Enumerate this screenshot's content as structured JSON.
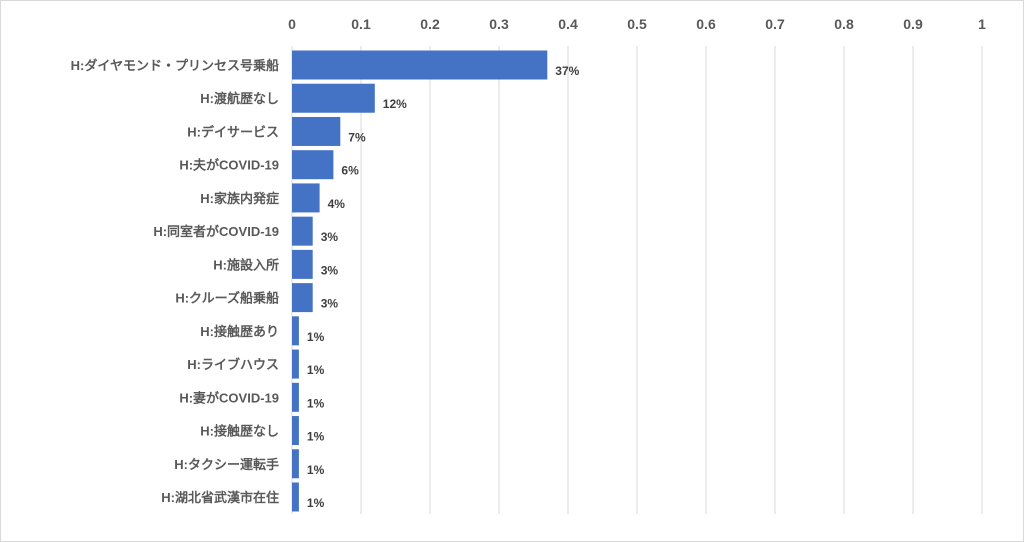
{
  "chart_data": {
    "type": "bar",
    "orientation": "horizontal",
    "title": "",
    "xlabel": "",
    "ylabel": "",
    "xlim": [
      0,
      1
    ],
    "x_ticks": [
      "0",
      "0.1",
      "0.2",
      "0.3",
      "0.4",
      "0.5",
      "0.6",
      "0.7",
      "0.8",
      "0.9",
      "1"
    ],
    "x_axis_position": "top",
    "grid": true,
    "legend": "none",
    "bar_color": "#4472C4",
    "categories": [
      "H:ダイヤモンド・プリンセス号乗船",
      "H:渡航歴なし",
      "H:デイサービス",
      "H:夫がCOVID-19",
      "H:家族内発症",
      "H:同室者がCOVID-19",
      "H:施設入所",
      "H:クルーズ船乗船",
      "H:接触歴あり",
      "H:ライブハウス",
      "H:妻がCOVID-19",
      "H:接触歴なし",
      "H:タクシー運転手",
      "H:湖北省武漢市在住"
    ],
    "values": [
      0.37,
      0.12,
      0.07,
      0.06,
      0.04,
      0.03,
      0.03,
      0.03,
      0.01,
      0.01,
      0.01,
      0.01,
      0.01,
      0.01
    ],
    "data_labels": [
      "37%",
      "12%",
      "7%",
      "6%",
      "4%",
      "3%",
      "3%",
      "3%",
      "1%",
      "1%",
      "1%",
      "1%",
      "1%",
      "1%"
    ]
  }
}
